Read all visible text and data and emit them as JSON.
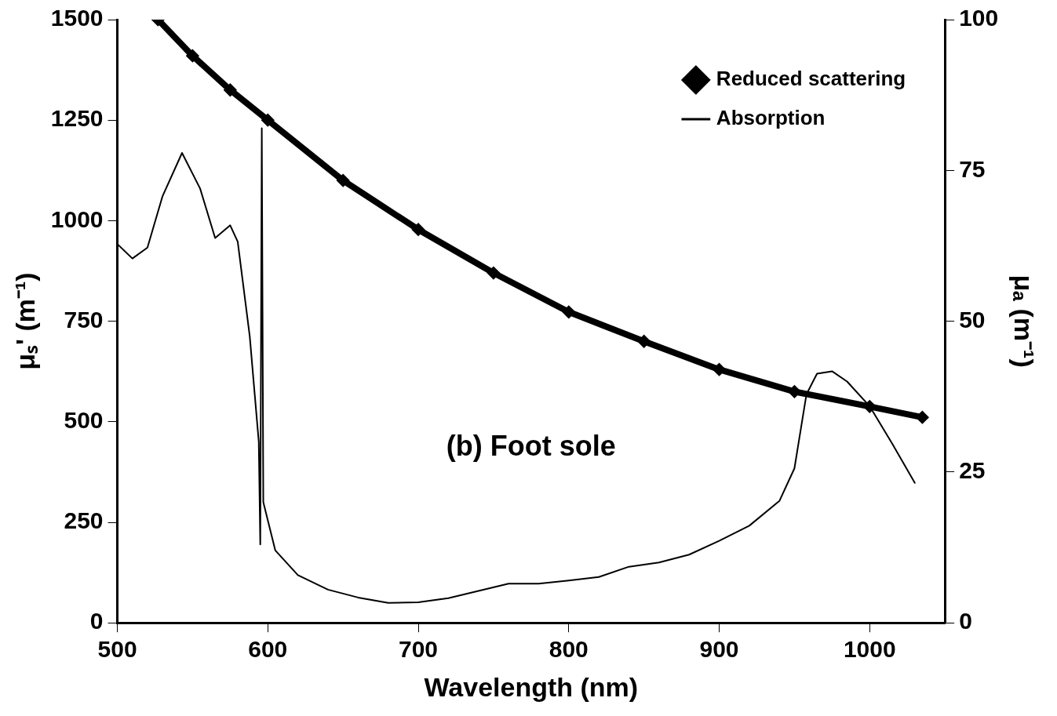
{
  "chart_data": {
    "type": "line",
    "xlabel": "Wavelength (nm)",
    "ylabel": "μₛ' (m⁻¹)",
    "y2label": "μₐ (m⁻¹)",
    "xlim": [
      500,
      1050
    ],
    "xticks": [
      500,
      600,
      700,
      800,
      900,
      1000
    ],
    "ylim": [
      0,
      1500
    ],
    "yticks": [
      0,
      250,
      500,
      750,
      1000,
      1250,
      1500
    ],
    "y2lim": [
      0,
      100
    ],
    "y2ticks": [
      0,
      25,
      50,
      75,
      100
    ],
    "grid": false,
    "legend": "top right",
    "annotations": [
      "(b) Foot sole"
    ],
    "series": [
      {
        "name": "Reduced scattering",
        "color": "#000000",
        "marker": "diamond",
        "axis": "y",
        "x": [
          527,
          550,
          575,
          600,
          650,
          700,
          750,
          800,
          850,
          900,
          950,
          1000,
          1035
        ],
        "values": [
          1500,
          1410,
          1325,
          1250,
          1100,
          978,
          870,
          773,
          700,
          630,
          575,
          538,
          511
        ]
      },
      {
        "name": "Absorption",
        "color": "#000000",
        "marker": "none",
        "axis": "y2",
        "x": [
          500,
          510,
          520,
          530,
          543,
          555,
          565,
          575,
          580,
          588,
          594,
          595,
          596,
          597,
          605,
          620,
          640,
          660,
          680,
          700,
          720,
          760,
          780,
          800,
          820,
          840,
          860,
          880,
          900,
          920,
          940,
          950,
          958,
          965,
          975,
          985,
          1000,
          1015,
          1030
        ],
        "values": [
          62.8,
          60.4,
          62.2,
          70.7,
          77.9,
          72,
          63.8,
          65.9,
          63.2,
          47.5,
          30,
          13,
          82,
          20,
          12,
          7.9,
          5.5,
          4.2,
          3.3,
          3.4,
          4.1,
          6.5,
          6.5,
          7,
          7.6,
          9.3,
          10,
          11.3,
          13.6,
          16.1,
          20.2,
          25.6,
          37.9,
          41.3,
          41.7,
          40,
          35.9,
          29.7,
          23.2
        ]
      }
    ]
  }
}
